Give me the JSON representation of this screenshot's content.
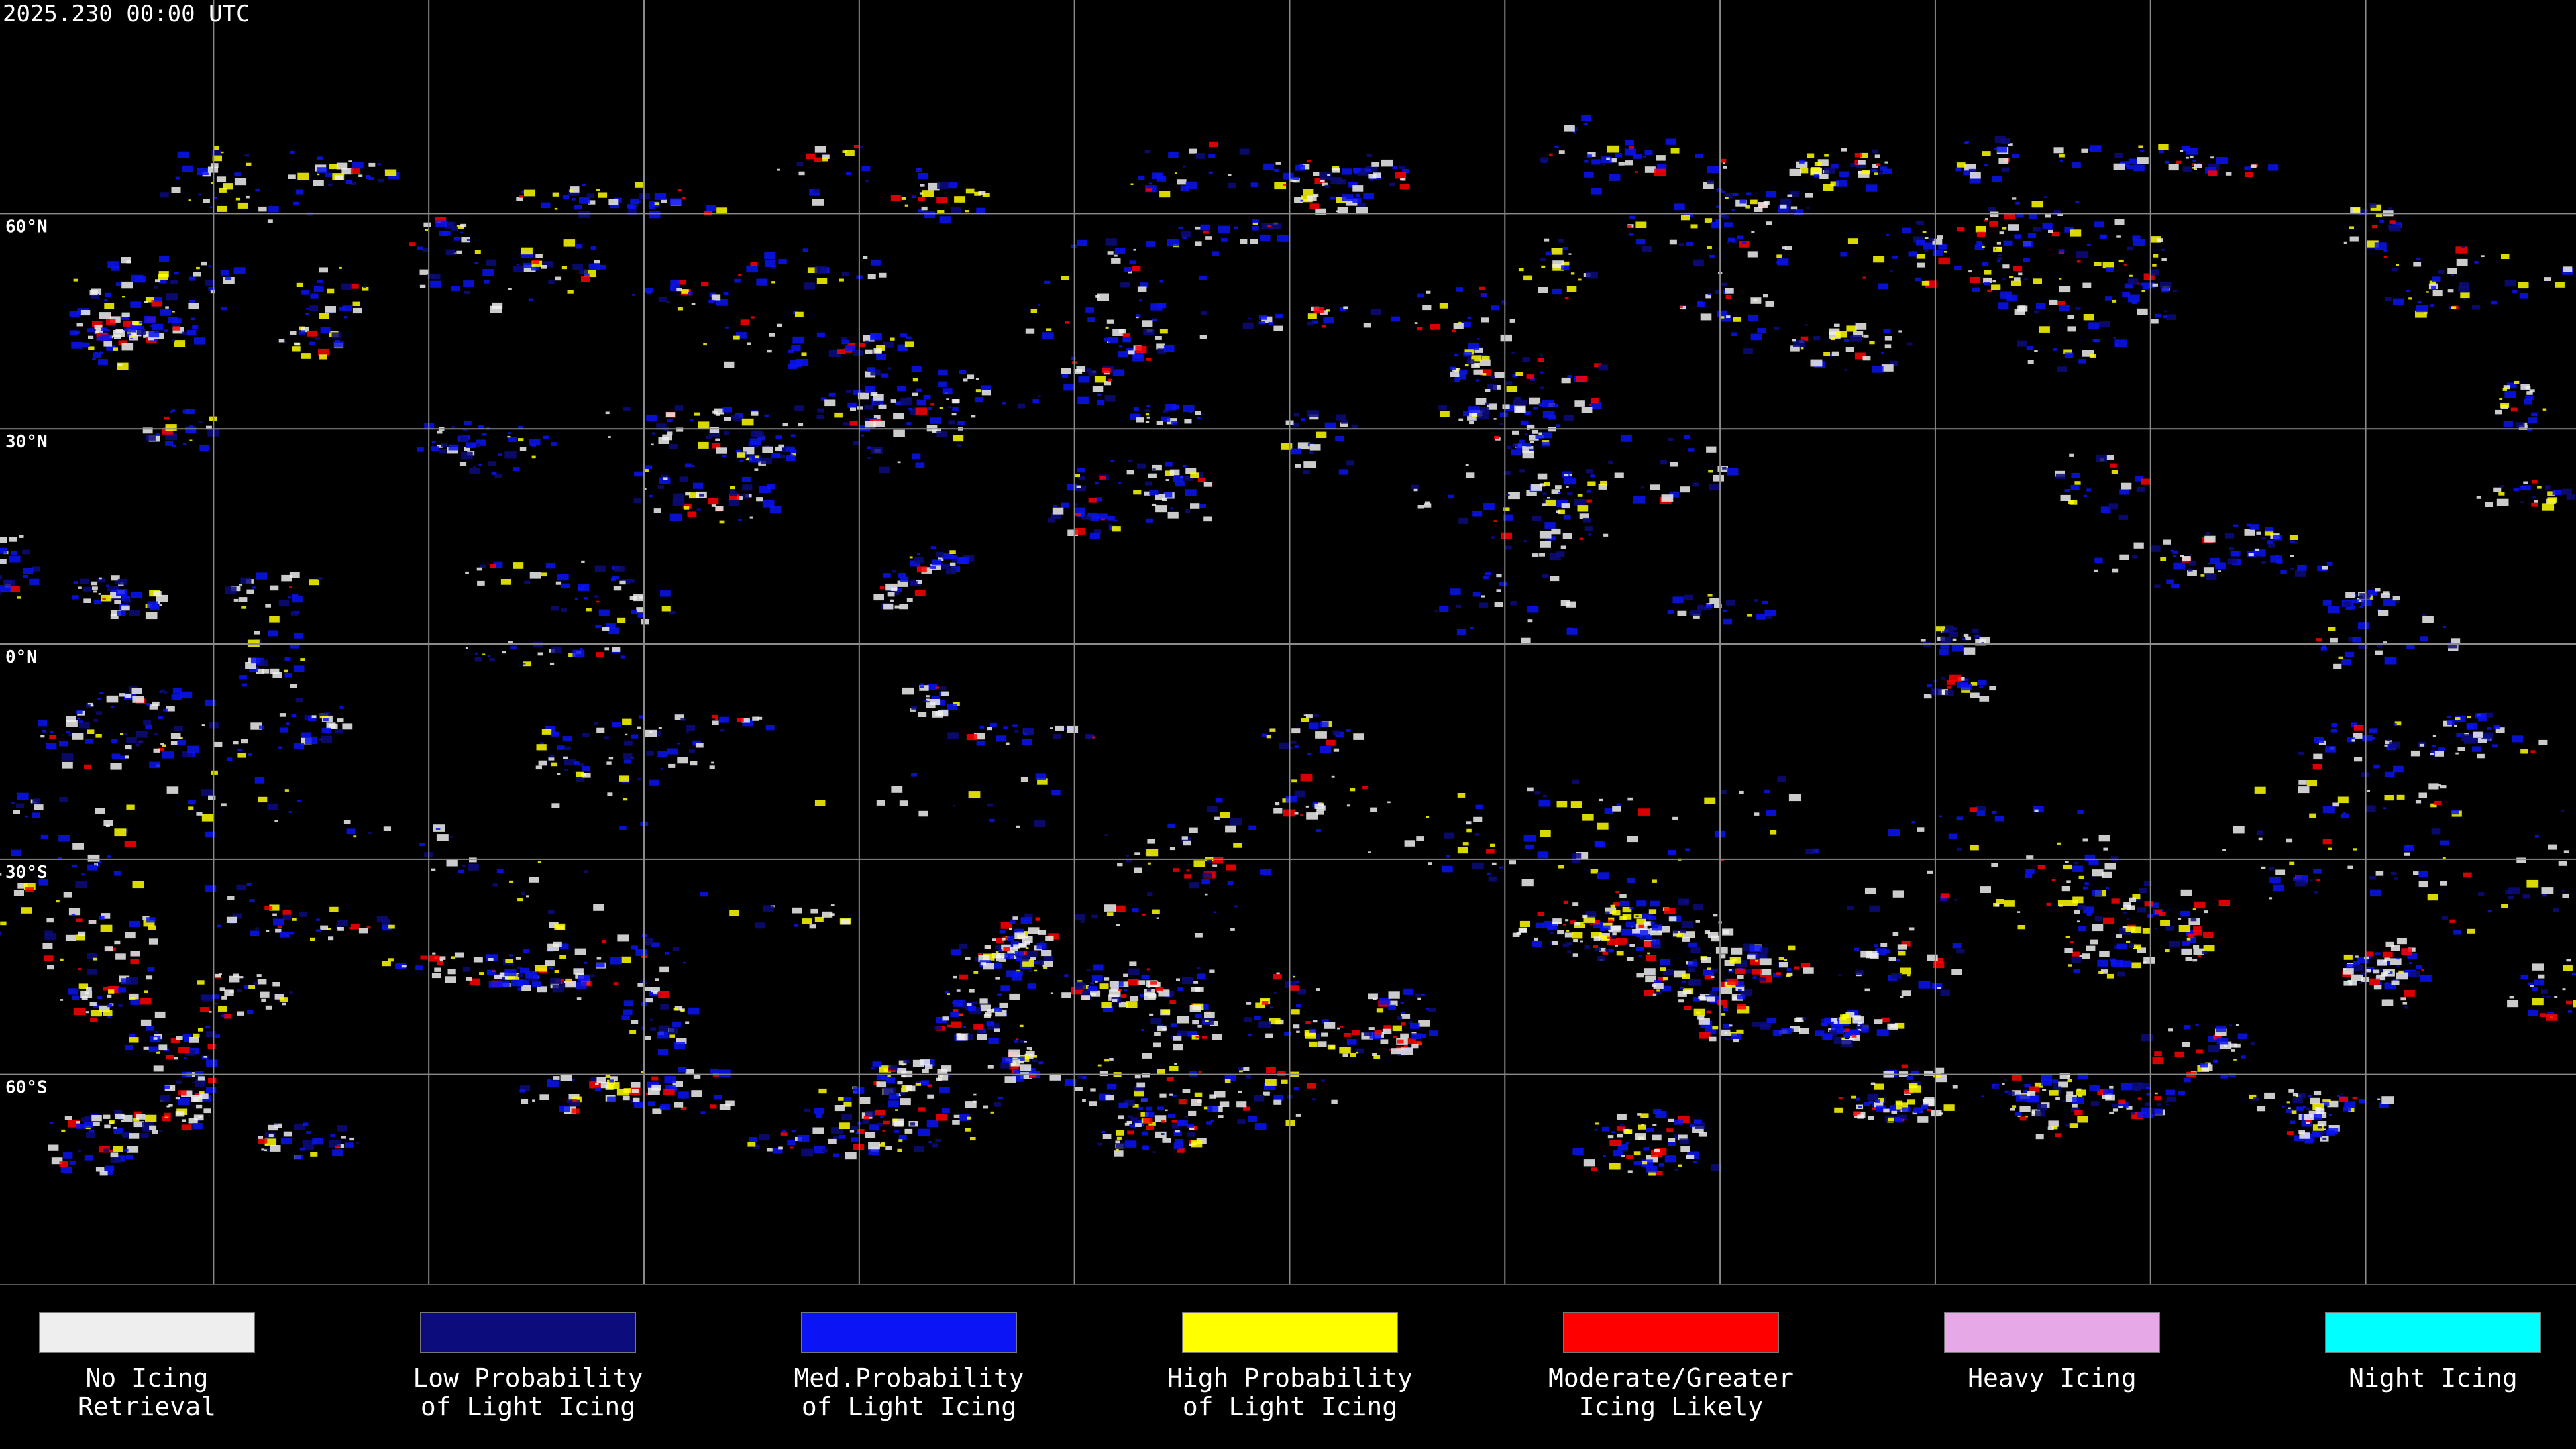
{
  "title": "2025.230 00:00 UTC",
  "latitude_labels": [
    "60°N",
    "30°N",
    "0°N",
    "30°S",
    "60°S"
  ],
  "legend": {
    "items": [
      {
        "label": [
          "No Icing",
          "Retrieval"
        ],
        "color": "#eeeeee"
      },
      {
        "label": [
          "Low Probability",
          "of Light Icing"
        ],
        "color": "#0c0c7c"
      },
      {
        "label": [
          "Med.Probability",
          "of Light Icing"
        ],
        "color": "#0a14f5"
      },
      {
        "label": [
          "High Probability",
          "of Light Icing"
        ],
        "color": "#ffff00"
      },
      {
        "label": [
          "Moderate/Greater",
          "Icing Likely"
        ],
        "color": "#ff0000"
      },
      {
        "label": [
          "Heavy Icing"
        ],
        "color": "#e6a8e6"
      },
      {
        "label": [
          "Night Icing"
        ],
        "color": "#00ffff"
      }
    ]
  }
}
